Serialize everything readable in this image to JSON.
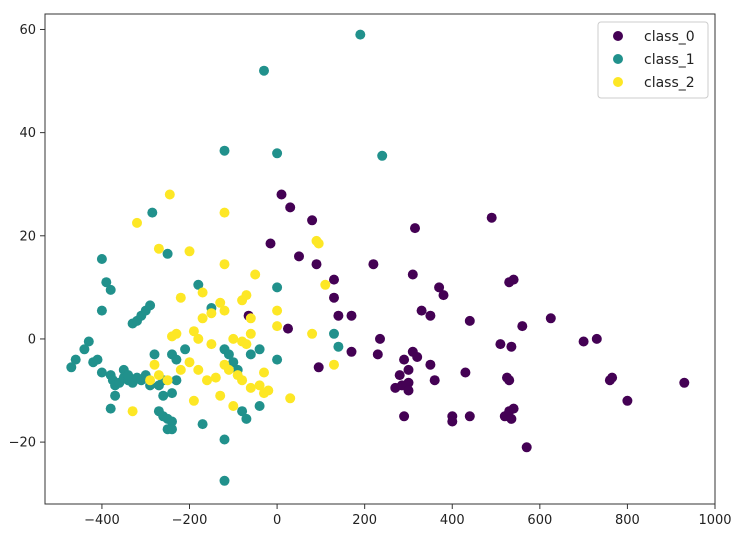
{
  "chart_data": {
    "type": "scatter",
    "title": "",
    "xlabel": "",
    "ylabel": "",
    "xlim": [
      -530,
      1000
    ],
    "ylim": [
      -32,
      63
    ],
    "xticks": [
      -400,
      -200,
      0,
      200,
      400,
      600,
      800,
      1000
    ],
    "yticks": [
      -20,
      0,
      20,
      40,
      60
    ],
    "xtick_labels": [
      "−400",
      "−200",
      "0",
      "200",
      "400",
      "600",
      "800",
      "1000"
    ],
    "ytick_labels": [
      "−20",
      "0",
      "20",
      "40",
      "60"
    ],
    "grid": false,
    "legend": {
      "placement": "top-right"
    },
    "series": [
      {
        "name": "class_0",
        "color": "#440154",
        "points": [
          [
            10,
            28
          ],
          [
            30,
            25.5
          ],
          [
            -15,
            18.5
          ],
          [
            50,
            16
          ],
          [
            80,
            23
          ],
          [
            90,
            14.5
          ],
          [
            130,
            11.5
          ],
          [
            130,
            8
          ],
          [
            140,
            4.5
          ],
          [
            170,
            4.5
          ],
          [
            -65,
            4.5
          ],
          [
            25,
            2
          ],
          [
            95,
            -5.5
          ],
          [
            170,
            -2.5
          ],
          [
            230,
            -3
          ],
          [
            235,
            0
          ],
          [
            220,
            14.5
          ],
          [
            310,
            12.5
          ],
          [
            315,
            21.5
          ],
          [
            330,
            5.5
          ],
          [
            350,
            4.5
          ],
          [
            370,
            10
          ],
          [
            380,
            8.5
          ],
          [
            350,
            -5
          ],
          [
            360,
            -8
          ],
          [
            300,
            -6
          ],
          [
            310,
            -2.5
          ],
          [
            320,
            -3.5
          ],
          [
            290,
            -4
          ],
          [
            280,
            -7
          ],
          [
            300,
            -8.5
          ],
          [
            270,
            -9.5
          ],
          [
            285,
            -9
          ],
          [
            300,
            -10
          ],
          [
            290,
            -15
          ],
          [
            400,
            -15
          ],
          [
            400,
            -16
          ],
          [
            440,
            -15
          ],
          [
            430,
            -6.5
          ],
          [
            440,
            3.5
          ],
          [
            490,
            23.5
          ],
          [
            510,
            -1
          ],
          [
            525,
            -7.5
          ],
          [
            530,
            -8
          ],
          [
            535,
            -1.5
          ],
          [
            530,
            11
          ],
          [
            540,
            11.5
          ],
          [
            560,
            2.5
          ],
          [
            520,
            -15
          ],
          [
            530,
            -14
          ],
          [
            535,
            -15.5
          ],
          [
            540,
            -13.5
          ],
          [
            570,
            -21
          ],
          [
            625,
            4
          ],
          [
            700,
            -0.5
          ],
          [
            730,
            0
          ],
          [
            760,
            -8
          ],
          [
            765,
            -7.5
          ],
          [
            800,
            -12
          ],
          [
            930,
            -8.5
          ]
        ]
      },
      {
        "name": "class_1",
        "color": "#21918c",
        "points": [
          [
            190,
            59
          ],
          [
            -30,
            52
          ],
          [
            -120,
            36.5
          ],
          [
            0,
            36
          ],
          [
            240,
            35.5
          ],
          [
            -250,
            16.5
          ],
          [
            -285,
            24.5
          ],
          [
            -400,
            15.5
          ],
          [
            -390,
            11
          ],
          [
            -380,
            9.5
          ],
          [
            -400,
            5.5
          ],
          [
            -330,
            3
          ],
          [
            -320,
            3.5
          ],
          [
            -310,
            4.5
          ],
          [
            -300,
            5.5
          ],
          [
            -290,
            6.5
          ],
          [
            -180,
            10.5
          ],
          [
            -150,
            6
          ],
          [
            -120,
            -2
          ],
          [
            -110,
            -3
          ],
          [
            -100,
            -4.5
          ],
          [
            -90,
            -6
          ],
          [
            -60,
            -3
          ],
          [
            -40,
            -2
          ],
          [
            0,
            10
          ],
          [
            0,
            -4
          ],
          [
            -240,
            -3
          ],
          [
            -230,
            -4
          ],
          [
            -210,
            -2
          ],
          [
            -280,
            -3
          ],
          [
            -470,
            -5.5
          ],
          [
            -460,
            -4
          ],
          [
            -440,
            -2
          ],
          [
            -430,
            -0.5
          ],
          [
            -420,
            -4.5
          ],
          [
            -410,
            -4
          ],
          [
            -400,
            -6.5
          ],
          [
            -380,
            -7
          ],
          [
            -375,
            -8
          ],
          [
            -370,
            -9
          ],
          [
            -360,
            -8.5
          ],
          [
            -350,
            -7.5
          ],
          [
            -340,
            -8
          ],
          [
            -330,
            -8.5
          ],
          [
            -350,
            -6
          ],
          [
            -340,
            -7
          ],
          [
            -320,
            -7.5
          ],
          [
            -310,
            -8
          ],
          [
            -300,
            -7
          ],
          [
            -290,
            -9
          ],
          [
            -270,
            -9
          ],
          [
            -260,
            -8
          ],
          [
            -260,
            -11
          ],
          [
            -240,
            -10.5
          ],
          [
            -230,
            -8
          ],
          [
            -370,
            -11
          ],
          [
            -380,
            -13.5
          ],
          [
            -270,
            -14
          ],
          [
            -260,
            -15
          ],
          [
            -250,
            -15.5
          ],
          [
            -240,
            -16
          ],
          [
            -250,
            -17.5
          ],
          [
            -240,
            -17.5
          ],
          [
            -170,
            -16.5
          ],
          [
            -120,
            -19.5
          ],
          [
            -80,
            -14
          ],
          [
            -70,
            -15.5
          ],
          [
            -40,
            -13
          ],
          [
            130,
            1
          ],
          [
            140,
            -1.5
          ],
          [
            -120,
            -27.5
          ]
        ]
      },
      {
        "name": "class_2",
        "color": "#fde725",
        "points": [
          [
            -245,
            28
          ],
          [
            -320,
            22.5
          ],
          [
            -120,
            24.5
          ],
          [
            -270,
            17.5
          ],
          [
            -200,
            17
          ],
          [
            -120,
            14.5
          ],
          [
            -50,
            12.5
          ],
          [
            90,
            19
          ],
          [
            95,
            18.5
          ],
          [
            110,
            10.5
          ],
          [
            -220,
            8
          ],
          [
            -170,
            9
          ],
          [
            -130,
            7
          ],
          [
            -150,
            5
          ],
          [
            -170,
            4
          ],
          [
            -80,
            7.5
          ],
          [
            -70,
            8.5
          ],
          [
            -120,
            5.5
          ],
          [
            -60,
            4
          ],
          [
            -240,
            0.5
          ],
          [
            -230,
            1
          ],
          [
            -190,
            1.5
          ],
          [
            -180,
            0
          ],
          [
            -150,
            -1
          ],
          [
            -100,
            0
          ],
          [
            -80,
            -0.5
          ],
          [
            -70,
            -1
          ],
          [
            -60,
            1
          ],
          [
            0,
            2.5
          ],
          [
            0,
            5.5
          ],
          [
            80,
            1
          ],
          [
            130,
            -5
          ],
          [
            -280,
            -5
          ],
          [
            -290,
            -8
          ],
          [
            -270,
            -7
          ],
          [
            -250,
            -8
          ],
          [
            -220,
            -6
          ],
          [
            -200,
            -4.5
          ],
          [
            -180,
            -6
          ],
          [
            -160,
            -8
          ],
          [
            -140,
            -7.5
          ],
          [
            -120,
            -5
          ],
          [
            -110,
            -6
          ],
          [
            -90,
            -7
          ],
          [
            -80,
            -8
          ],
          [
            -60,
            -9.5
          ],
          [
            -40,
            -9
          ],
          [
            -30,
            -6.5
          ],
          [
            -100,
            -13
          ],
          [
            -130,
            -11
          ],
          [
            -190,
            -12
          ],
          [
            -30,
            -10.5
          ],
          [
            30,
            -11.5
          ],
          [
            -330,
            -14
          ],
          [
            -20,
            -10
          ]
        ]
      }
    ]
  }
}
